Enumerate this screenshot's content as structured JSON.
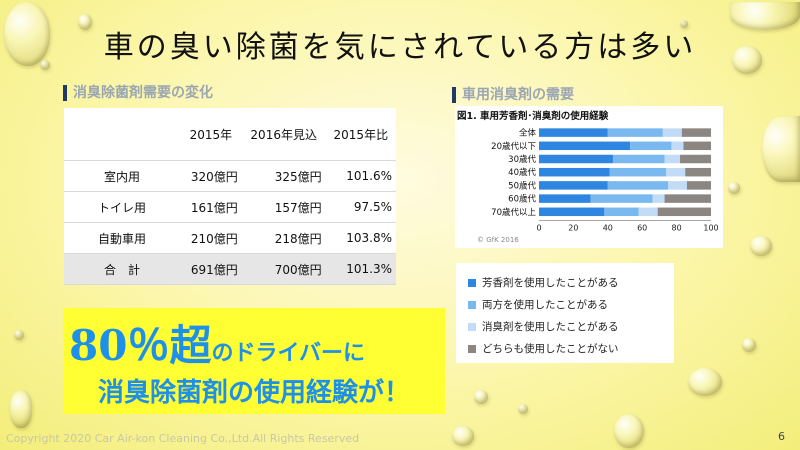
{
  "title": "車の臭い除菌を気にされている方は多い",
  "left_section": {
    "heading": "消臭除菌剤需要の変化",
    "columns": [
      "",
      "2015年",
      "2016年見込",
      "2015年比"
    ],
    "rows": [
      {
        "label": "室内用",
        "y2015": "320億円",
        "y2016": "325億円",
        "ratio": "101.6%"
      },
      {
        "label": "トイレ用",
        "y2015": "161億円",
        "y2016": "157億円",
        "ratio": "97.5%"
      },
      {
        "label": "自動車用",
        "y2015": "210億円",
        "y2016": "218億円",
        "ratio": "103.8%"
      }
    ],
    "total": {
      "label": "合　計",
      "y2015": "691億円",
      "y2016": "700億円",
      "ratio": "101.3%"
    }
  },
  "right_section": {
    "heading": "車用消臭剤の需要"
  },
  "chart_data": {
    "type": "bar",
    "orientation": "horizontal-stacked",
    "title": "図1. 車用芳香剤･消臭剤の使用経験",
    "categories": [
      "全体",
      "20歳代以下",
      "30歳代",
      "40歳代",
      "50歳代",
      "60歳代",
      "70歳代以上"
    ],
    "series": [
      {
        "name": "芳香剤を使用したことがある",
        "color": "#2e86e0",
        "values": [
          40,
          53,
          43,
          41,
          40,
          30,
          38
        ]
      },
      {
        "name": "両方を使用したことがある",
        "color": "#7ab8f0",
        "values": [
          32,
          24,
          30,
          33,
          35,
          36,
          20
        ]
      },
      {
        "name": "消臭剤を使用したことがある",
        "color": "#c2dcf7",
        "values": [
          11,
          7,
          9,
          11,
          11,
          7,
          11
        ]
      },
      {
        "name": "どちらも使用したことがない",
        "color": "#8c8682",
        "values": [
          17,
          16,
          18,
          15,
          14,
          27,
          31
        ]
      }
    ],
    "xlim": [
      0,
      100
    ],
    "xticks": [
      "0",
      "20",
      "40",
      "60",
      "80",
      "100"
    ],
    "source": "© GfK 2016"
  },
  "promo": {
    "big": "80％超",
    "small": "のドライバーに",
    "line2": "消臭除菌剤の使用経験が！"
  },
  "footer": "Copyright 2020 Car Air-kon Cleaning  Co.,Ltd.All Rights Reserved",
  "page_number": "6"
}
